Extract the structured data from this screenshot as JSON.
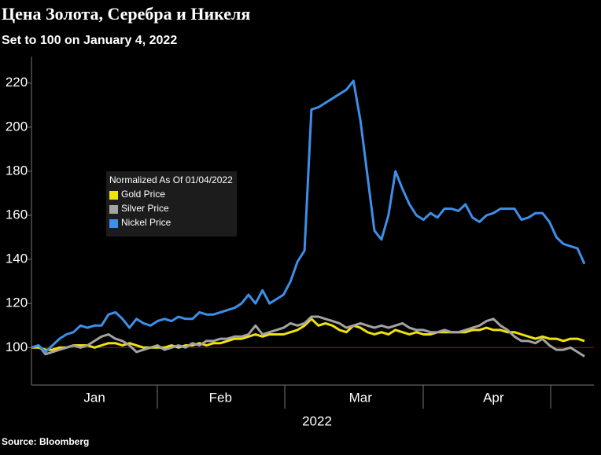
{
  "chart_data": {
    "type": "line",
    "title": "Цена Золота, Серебра и Никеля",
    "subtitle": "Set to 100 on January 4, 2022",
    "x_label": "2022",
    "source": "Source: Bloomberg",
    "legend_title": "Normalized As Of 01/04/2022",
    "legend_position": "center left",
    "grid": false,
    "reference_line": 100,
    "reference_color": "#c0001a",
    "ylim": [
      83,
      232
    ],
    "yticks": [
      100,
      120,
      140,
      160,
      180,
      200,
      220
    ],
    "categories": [
      null,
      null,
      null,
      null,
      null,
      null,
      null,
      null,
      null,
      "Jan",
      null,
      null,
      null,
      null,
      null,
      null,
      null,
      null,
      null,
      null,
      null,
      null,
      null,
      null,
      null,
      null,
      null,
      "Feb",
      null,
      null,
      null,
      null,
      null,
      null,
      null,
      null,
      null,
      null,
      null,
      null,
      null,
      null,
      null,
      null,
      null,
      null,
      null,
      "Mar",
      null,
      null,
      null,
      null,
      null,
      null,
      null,
      null,
      null,
      null,
      null,
      null,
      null,
      null,
      null,
      null,
      null,
      null,
      "Apr",
      null,
      null,
      null,
      null,
      null,
      null,
      null,
      null,
      null,
      null,
      null,
      null,
      null
    ],
    "series": [
      {
        "name": "Gold Price",
        "color": "#f2e20c",
        "values": [
          100,
          100,
          99,
          99,
          100,
          100,
          101,
          101,
          101,
          100,
          101,
          102,
          102,
          101,
          102,
          101,
          100,
          100,
          100,
          100,
          101,
          100,
          101,
          101,
          102,
          101,
          102,
          102,
          103,
          104,
          104,
          105,
          106,
          105,
          106,
          106,
          106,
          107,
          108,
          110,
          113,
          110,
          111,
          110,
          108,
          107,
          110,
          109,
          107,
          106,
          107,
          106,
          108,
          107,
          106,
          107,
          106,
          106,
          107,
          107,
          107,
          107,
          107,
          108,
          108,
          109,
          108,
          108,
          107,
          107,
          106,
          105,
          104,
          105,
          104,
          104,
          103,
          104,
          104,
          103
        ]
      },
      {
        "name": "Silver Price",
        "color": "#a3a3a3",
        "values": [
          100,
          101,
          97,
          98,
          99,
          100,
          101,
          100,
          101,
          103,
          105,
          106,
          104,
          103,
          101,
          98,
          99,
          100,
          101,
          99,
          100,
          101,
          100,
          102,
          101,
          103,
          103,
          104,
          104,
          105,
          105,
          106,
          110,
          106,
          107,
          108,
          109,
          111,
          110,
          111,
          114,
          114,
          113,
          112,
          111,
          109,
          110,
          111,
          110,
          109,
          110,
          109,
          110,
          111,
          109,
          108,
          108,
          107,
          107,
          108,
          107,
          107,
          108,
          109,
          110,
          112,
          113,
          110,
          108,
          105,
          103,
          103,
          102,
          104,
          101,
          99,
          99,
          100,
          98,
          96
        ]
      },
      {
        "name": "Nickel Price",
        "color": "#3d8fe8",
        "values": [
          100,
          101,
          98,
          101,
          104,
          106,
          107,
          110,
          109,
          110,
          110,
          115,
          116,
          113,
          109,
          113,
          111,
          110,
          112,
          113,
          112,
          114,
          113,
          113,
          116,
          115,
          115,
          116,
          117,
          118,
          120,
          124,
          120,
          126,
          120,
          122,
          124,
          130,
          139,
          144,
          208,
          209,
          211,
          213,
          215,
          217,
          221,
          203,
          178,
          153,
          149,
          160,
          180,
          172,
          165,
          160,
          158,
          161,
          159,
          163,
          163,
          162,
          165,
          159,
          157,
          160,
          161,
          163,
          163,
          163,
          158,
          159,
          161,
          161,
          157,
          150,
          147,
          146,
          145,
          138
        ]
      }
    ]
  }
}
